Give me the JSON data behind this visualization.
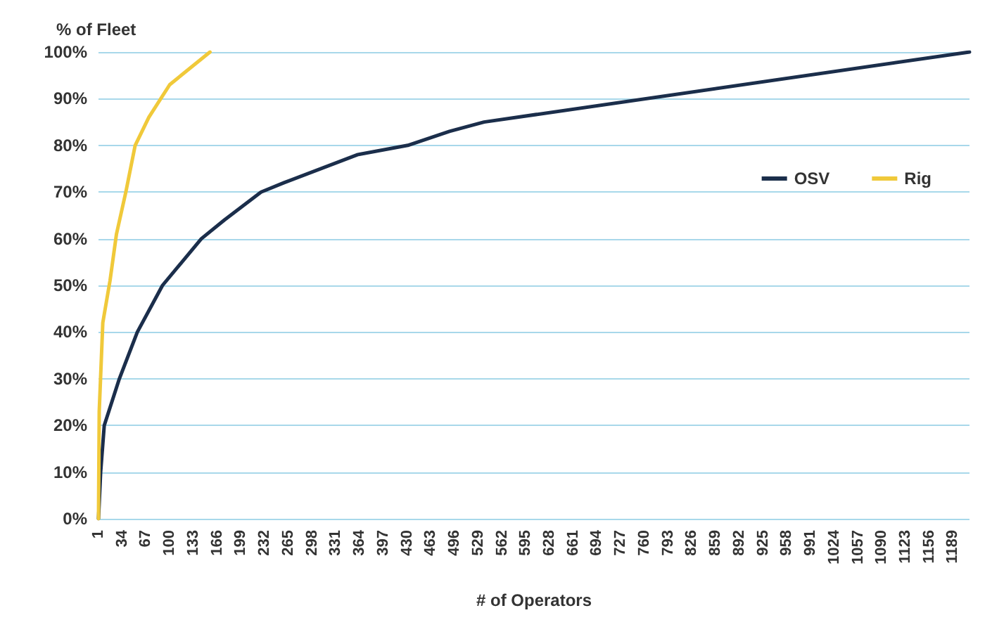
{
  "chart_data": {
    "type": "line",
    "xlabel": "# of Operators",
    "ylabel": "% of Fleet",
    "xlim": [
      1,
      1212
    ],
    "xticks": [
      1,
      34,
      67,
      100,
      133,
      166,
      199,
      232,
      265,
      298,
      331,
      364,
      397,
      430,
      463,
      496,
      529,
      562,
      595,
      628,
      661,
      694,
      727,
      760,
      793,
      826,
      859,
      892,
      925,
      958,
      991,
      1024,
      1057,
      1090,
      1123,
      1156,
      1189
    ],
    "ylim": [
      0,
      100
    ],
    "yticks": [
      {
        "value": 0,
        "label": "0%"
      },
      {
        "value": 10,
        "label": "10%"
      },
      {
        "value": 20,
        "label": "20%"
      },
      {
        "value": 30,
        "label": "30%"
      },
      {
        "value": 40,
        "label": "40%"
      },
      {
        "value": 50,
        "label": "50%"
      },
      {
        "value": 60,
        "label": "60%"
      },
      {
        "value": 70,
        "label": "70%"
      },
      {
        "value": 80,
        "label": "80%"
      },
      {
        "value": 90,
        "label": "90%"
      },
      {
        "value": 100,
        "label": "100%"
      }
    ],
    "grid": "y",
    "legend": "right",
    "marker": "none",
    "line_style": "solid",
    "series": [
      {
        "name": "OSV",
        "color": "#1b2e4b",
        "x": [
          1,
          4,
          9,
          30,
          55,
          90,
          144,
          176,
          227,
          259,
          361,
          431,
          489,
          537,
          1212
        ],
        "values": [
          0,
          10,
          20,
          30,
          40,
          50,
          60,
          64,
          70,
          72,
          78,
          80,
          83,
          85,
          100
        ]
      },
      {
        "name": "Rig",
        "color": "#f0c93a",
        "x": [
          1,
          2,
          7,
          17,
          26,
          39,
          52,
          71,
          100,
          156
        ],
        "values": [
          0,
          23,
          42,
          51,
          61,
          70,
          80,
          86,
          93,
          100
        ]
      }
    ]
  }
}
